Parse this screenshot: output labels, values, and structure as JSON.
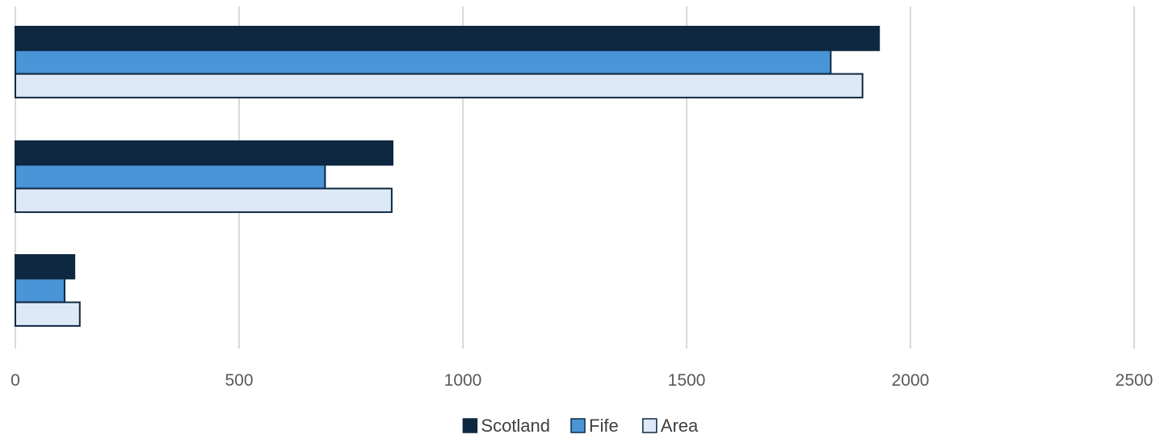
{
  "chart_data": {
    "type": "bar",
    "orientation": "horizontal",
    "title": "",
    "xlabel": "",
    "ylabel": "",
    "categories": [
      "",
      "",
      ""
    ],
    "series": [
      {
        "name": "Scotland",
        "color": "#0e2841",
        "values": [
          1930,
          843,
          132
        ]
      },
      {
        "name": "Fife",
        "color": "#4a94d8",
        "values": [
          1822,
          692,
          110
        ]
      },
      {
        "name": "Area",
        "color": "#dde9f6",
        "values": [
          1893,
          841,
          144
        ]
      }
    ],
    "xlim": [
      0,
      2500
    ],
    "xticks": [
      0,
      500,
      1000,
      1500,
      2000,
      2500
    ],
    "xtick_labels": [
      "0",
      "500",
      "1000",
      "1500",
      "2000",
      "2500"
    ],
    "grid": "vertical",
    "legend_position": "bottom",
    "bar_outline_color": "#0e2841",
    "grid_color": "#d9d9d9"
  }
}
